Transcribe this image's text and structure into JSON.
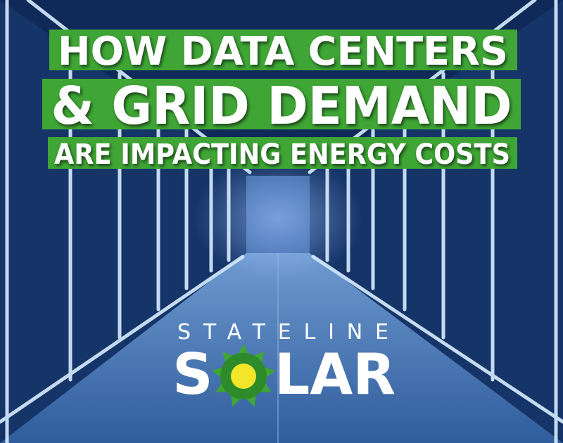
{
  "headline": {
    "lines": [
      "HOW DATA CENTERS",
      "& GRID DEMAND",
      "ARE IMPACTING ENERGY COSTS"
    ]
  },
  "logo": {
    "tagline": "STATELINE",
    "name_start": "S",
    "name_end": "LAR"
  }
}
